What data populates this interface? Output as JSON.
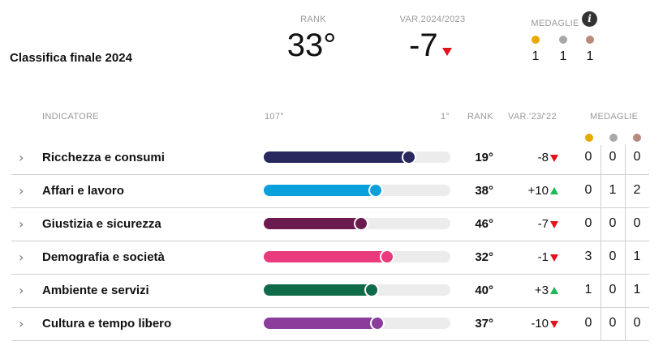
{
  "page": {
    "title": "Classifica finale 2024"
  },
  "summary": {
    "rank_label": "RANK",
    "rank_value": "33°",
    "var_label": "VAR.2024/2023",
    "var_value": "-7",
    "var_direction": "down",
    "medals_label": "MEDAGLIE",
    "info_icon": "i",
    "gold": "1",
    "silver": "1",
    "bronze": "1"
  },
  "colors": {
    "gold": "#e8a900",
    "silver": "#a9a9a9",
    "bronze": "#b88a7e",
    "down": "#e3121b",
    "up": "#1db954"
  },
  "table": {
    "headers": {
      "indicator": "INDICATORE",
      "scale_min": "107°",
      "scale_max": "1°",
      "rank": "RANK",
      "var": "VAR.'23/'22",
      "medals": "MEDAGLIE"
    },
    "rows": [
      {
        "name": "Ricchezza e consumi",
        "rank": "19°",
        "var": "-8",
        "dir": "down",
        "gold": "0",
        "silver": "0",
        "bronze": "0",
        "color": "#26285e",
        "progress": 0.78
      },
      {
        "name": "Affari e lavoro",
        "rank": "38°",
        "var": "+10",
        "dir": "up",
        "gold": "0",
        "silver": "1",
        "bronze": "2",
        "color": "#0aa0dc",
        "progress": 0.6
      },
      {
        "name": "Giustizia e sicurezza",
        "rank": "46°",
        "var": "-7",
        "dir": "down",
        "gold": "0",
        "silver": "0",
        "bronze": "0",
        "color": "#6b1b4f",
        "progress": 0.52
      },
      {
        "name": "Demografia e società",
        "rank": "32°",
        "var": "-1",
        "dir": "down",
        "gold": "3",
        "silver": "0",
        "bronze": "1",
        "color": "#e83a7c",
        "progress": 0.66
      },
      {
        "name": "Ambiente e servizi",
        "rank": "40°",
        "var": "+3",
        "dir": "up",
        "gold": "1",
        "silver": "0",
        "bronze": "1",
        "color": "#0f6a47",
        "progress": 0.58
      },
      {
        "name": "Cultura e tempo libero",
        "rank": "37°",
        "var": "-10",
        "dir": "down",
        "gold": "0",
        "silver": "0",
        "bronze": "0",
        "color": "#8a3d9b",
        "progress": 0.61
      }
    ]
  }
}
